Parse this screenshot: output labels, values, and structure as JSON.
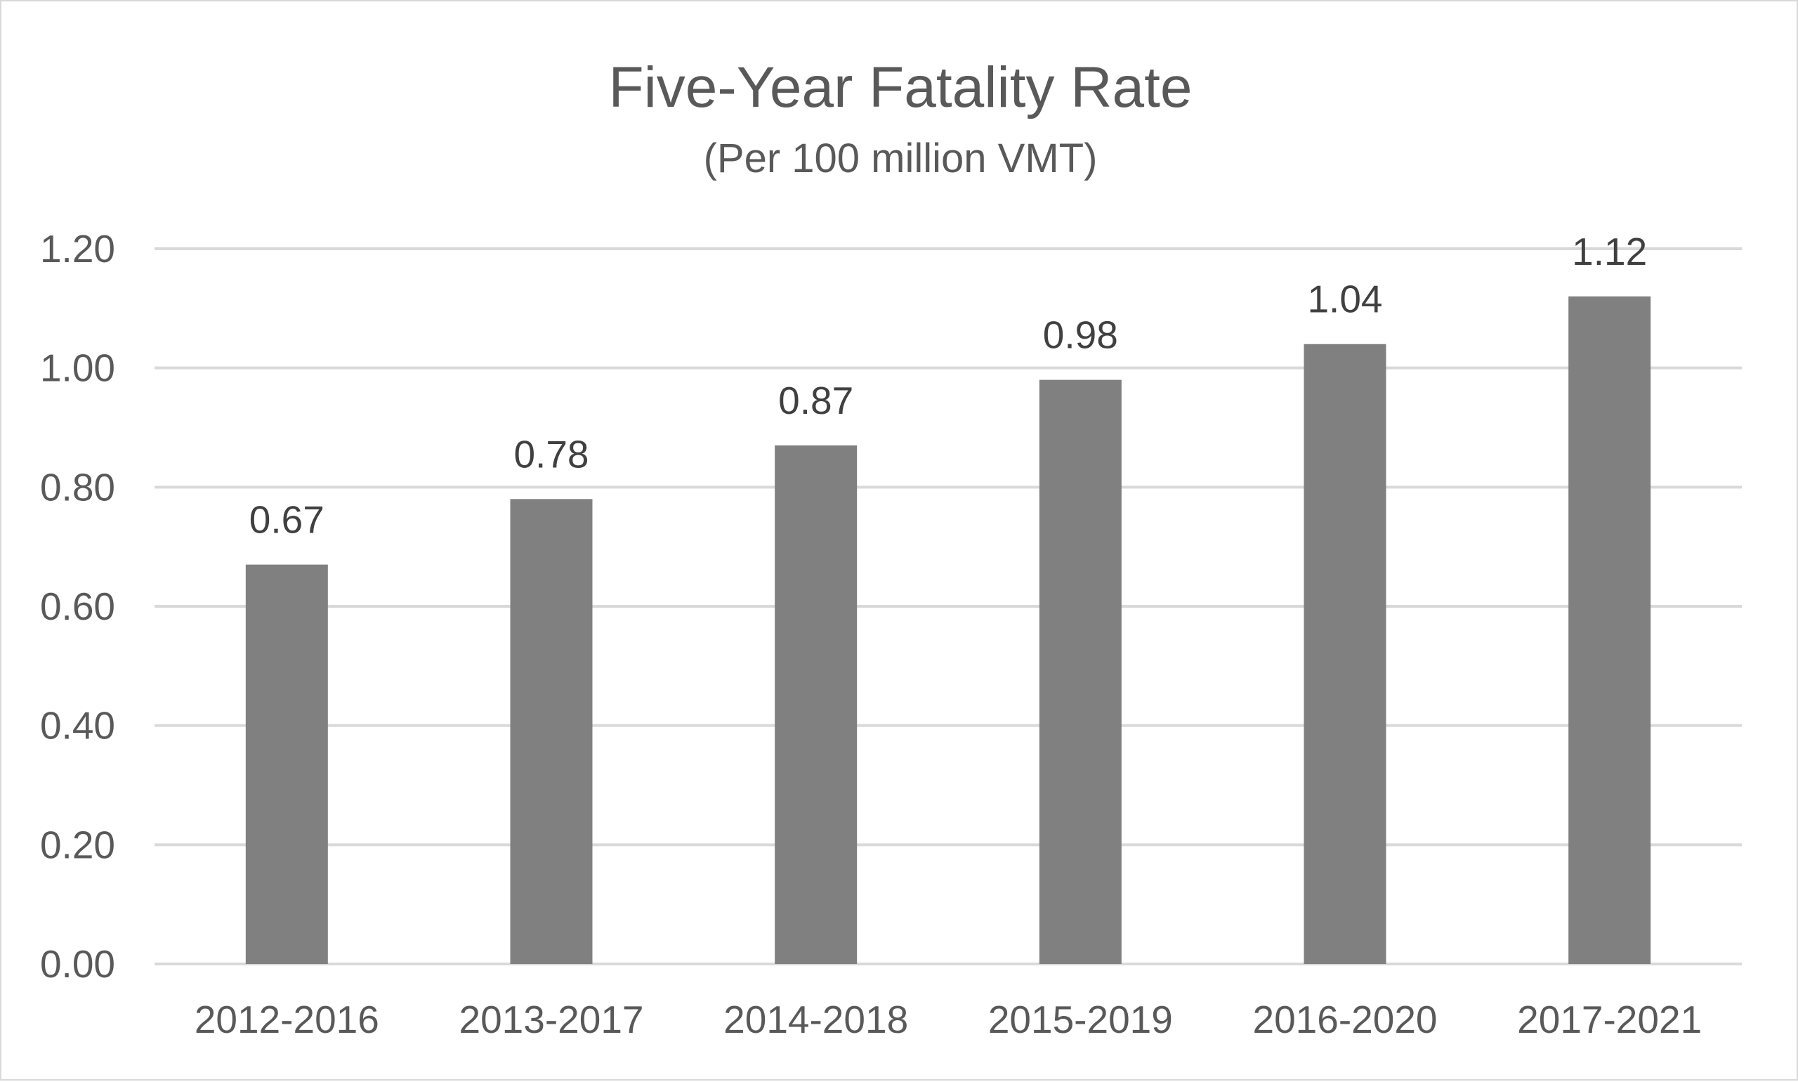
{
  "chart_data": {
    "type": "bar",
    "title": "Five-Year Fatality Rate",
    "subtitle": "(Per 100 million VMT)",
    "xlabel": "",
    "ylabel": "",
    "categories": [
      "2012-2016",
      "2013-2017",
      "2014-2018",
      "2015-2019",
      "2016-2020",
      "2017-2021"
    ],
    "values": [
      0.67,
      0.78,
      0.87,
      0.98,
      1.04,
      1.12
    ],
    "data_labels": [
      "0.67",
      "0.78",
      "0.87",
      "0.98",
      "1.04",
      "1.12"
    ],
    "ylim": [
      0,
      1.2
    ],
    "yticks": [
      "0.00",
      "0.20",
      "0.40",
      "0.60",
      "0.80",
      "1.00",
      "1.20"
    ],
    "ytick_values": [
      0,
      0.2,
      0.4,
      0.6,
      0.8,
      1.0,
      1.2
    ],
    "grid": true,
    "legend": "none"
  },
  "colors": {
    "bar": "#808080",
    "gridline": "#d9d9d9",
    "title_text": "#595959",
    "tick_text": "#595959",
    "data_label_text": "#404040",
    "frame": "#d9d9d9",
    "background": "#ffffff"
  }
}
